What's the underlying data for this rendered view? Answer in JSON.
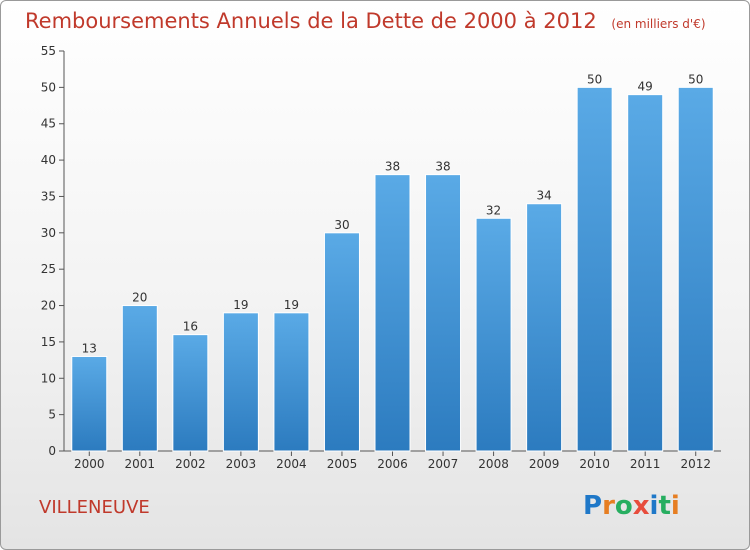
{
  "header": {
    "title": "Remboursements Annuels de la Dette de 2000 à 2012",
    "unit": "(en milliers d'€)"
  },
  "footer": {
    "city": "VILLENEUVE",
    "logo_text": "Proxiti"
  },
  "colors": {
    "bar_top": "#5aaae6",
    "bar_bottom": "#2c7bbf",
    "title": "#c0392b",
    "logo": [
      "#1f78c8",
      "#e67e22",
      "#27ae60",
      "#e74c3c",
      "#1f78c8",
      "#27ae60",
      "#e67e22"
    ]
  },
  "chart_data": {
    "type": "bar",
    "title": "Remboursements Annuels de la Dette de 2000 à 2012",
    "xlabel": "",
    "ylabel": "",
    "categories": [
      "2000",
      "2001",
      "2002",
      "2003",
      "2004",
      "2005",
      "2006",
      "2007",
      "2008",
      "2009",
      "2010",
      "2011",
      "2012"
    ],
    "values": [
      13,
      20,
      16,
      19,
      19,
      30,
      38,
      38,
      32,
      34,
      50,
      49,
      50
    ],
    "ylim": [
      0,
      55
    ],
    "yticks": [
      0,
      5,
      10,
      15,
      20,
      25,
      30,
      35,
      40,
      45,
      50,
      55
    ],
    "grid": false,
    "legend": "none"
  }
}
